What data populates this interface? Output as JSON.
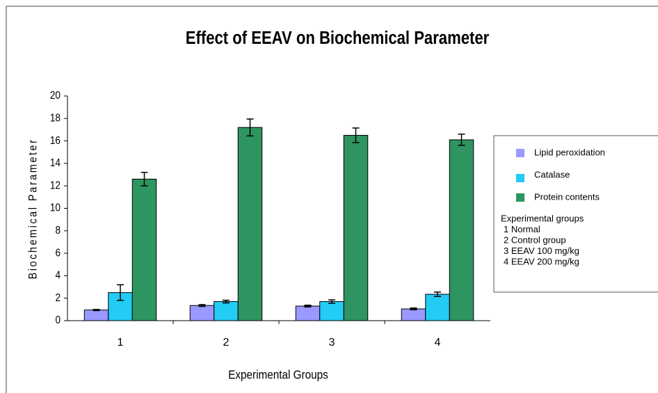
{
  "chart_data": {
    "type": "bar",
    "title": "Effect of EEAV on Biochemical Parameter",
    "x_label": "Experimental Groups",
    "y_label": "Biochemical Parameter",
    "categories": [
      "1",
      "2",
      "3",
      "4"
    ],
    "series": [
      {
        "name": "Lipid peroxidation",
        "color": "#9999ff",
        "values": [
          0.95,
          1.35,
          1.3,
          1.05
        ],
        "errors": [
          0.05,
          0.08,
          0.08,
          0.08
        ]
      },
      {
        "name": "Catalase",
        "color": "#22ccf5",
        "values": [
          2.5,
          1.7,
          1.7,
          2.35
        ],
        "errors": [
          0.7,
          0.12,
          0.15,
          0.2
        ]
      },
      {
        "name": "Protein contents",
        "color": "#2e9460",
        "values": [
          12.6,
          17.2,
          16.5,
          16.1
        ],
        "errors": [
          0.6,
          0.75,
          0.65,
          0.5
        ]
      }
    ],
    "legend_notes": [
      "Experimental groups",
      "1  Normal",
      "2 Control group",
      "3  EEAV 100 mg/kg",
      "4  EEAV 200 mg/kg"
    ],
    "ylim": [
      0,
      20
    ],
    "yticks": [
      0,
      2,
      4,
      6,
      8,
      10,
      12,
      14,
      16,
      18,
      20
    ],
    "grid": false,
    "legend": "right"
  }
}
